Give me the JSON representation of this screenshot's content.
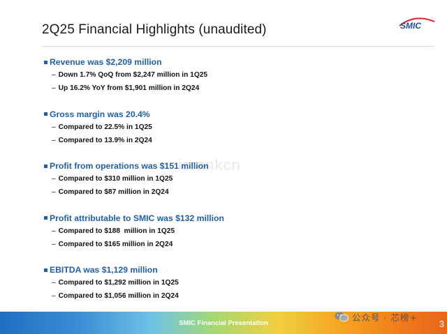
{
  "slide": {
    "title": "2Q25 Financial Highlights (unaudited)",
    "logo_text": "SMIC",
    "brand_color": "#1f5fa8",
    "sections": [
      {
        "heading": "Revenue was $2,209 million",
        "items": [
          "Down 1.7% QoQ from $2,247 million in 1Q25",
          "Up 16.2% YoY from $1,901 million in 2Q24"
        ]
      },
      {
        "heading": "Gross margin was 20.4%",
        "items": [
          "Compared to 22.5% in 1Q25",
          "Compared to 13.9% in 2Q24"
        ]
      },
      {
        "heading": "Profit from operations was $151 million",
        "items": [
          "Compared to $310 million in 1Q25",
          "Compared to $87 million in 2Q24"
        ]
      },
      {
        "heading": "Profit attributable to SMIC was $132 million",
        "items": [
          "Compared to $188  million in 1Q25",
          "Compared to $165 million in 2Q24"
        ]
      },
      {
        "heading": "EBITDA was $1,129 million",
        "items": [
          "Compared to $1,292 million in 1Q25",
          "Compared to $1,056 million in 2Q24"
        ]
      }
    ],
    "watermark": "icrankcn",
    "footer_text": "SMIC Financial Presentation",
    "wechat_label": "公众号 · 芯榜+",
    "page_number": "3"
  }
}
